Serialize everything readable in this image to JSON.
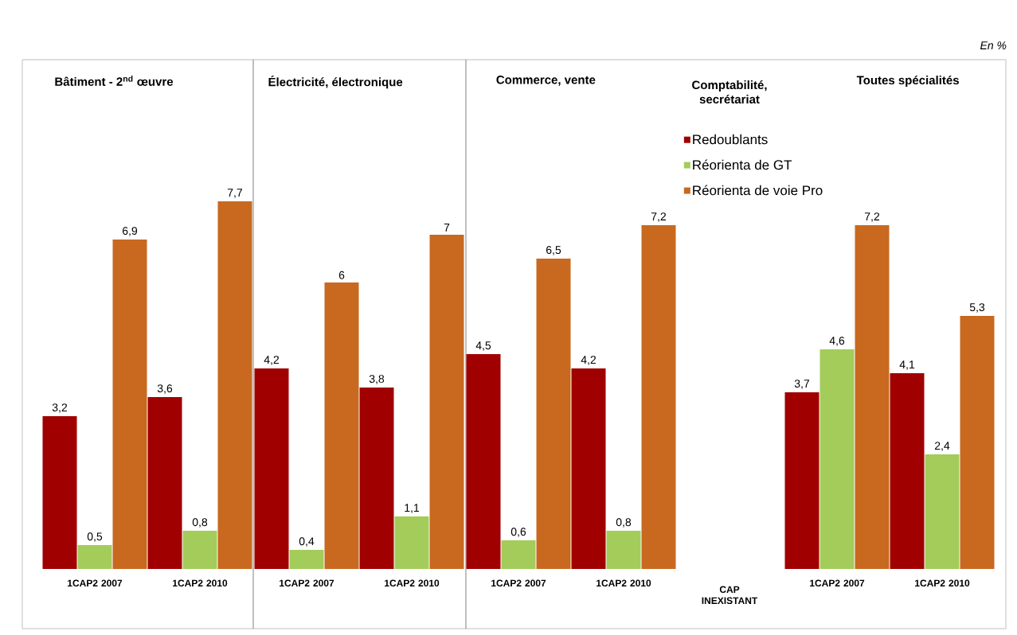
{
  "chart_data": [
    {
      "type": "bar",
      "title": "Bâtiment - 2$^{nd}$ œuvre",
      "categories": [
        "1CAP2 2007",
        "1CAP2 2010"
      ],
      "series": [
        {
          "color": "#a00000",
          "values": [
            3.2,
            3.6
          ],
          "value_labels": [
            "3,2",
            "3,6"
          ]
        },
        {
          "color": "#a3cc5a",
          "values": [
            0.5,
            0.8
          ],
          "value_labels": [
            "0,5",
            "0,8"
          ]
        },
        {
          "color": "#c8691f",
          "values": [
            6.9,
            7.7
          ],
          "value_labels": [
            "6,9",
            "7,7"
          ]
        }
      ]
    },
    {
      "type": "bar",
      "title": "Électricité, électronique",
      "categories": [
        "1CAP2 2007",
        "1CAP2 2010"
      ],
      "series": [
        {
          "color": "#a00000",
          "values": [
            4.2,
            3.8
          ],
          "value_labels": [
            "4,2",
            "3,8"
          ]
        },
        {
          "color": "#a3cc5a",
          "values": [
            0.4,
            1.1
          ],
          "value_labels": [
            "0,4",
            "1,1"
          ]
        },
        {
          "color": "#c8691f",
          "values": [
            6,
            7
          ],
          "value_labels": [
            "6",
            "7"
          ]
        }
      ]
    },
    {
      "type": "bar",
      "title": "Commerce, vente",
      "categories": [
        "1CAP2 2007",
        "1CAP2 2010"
      ],
      "series": [
        {
          "color": "#a00000",
          "values": [
            4.5,
            4.2
          ],
          "value_labels": [
            "4,5",
            "4,2"
          ]
        },
        {
          "color": "#a3cc5a",
          "values": [
            0.6,
            0.8
          ],
          "value_labels": [
            "0,6",
            "0,8"
          ]
        },
        {
          "color": "#c8691f",
          "values": [
            6.5,
            7.2
          ],
          "value_labels": [
            "6,5",
            "7,2"
          ]
        }
      ]
    },
    {
      "type": "other",
      "title": "Comptabilité, secrétariat",
      "annotations": [
        "CAP INEXISTANT"
      ]
    },
    {
      "type": "bar",
      "title": "Toutes spécialités",
      "categories": [
        "1CAP2 2007",
        "1CAP2 2010"
      ],
      "annotations": [
        "En %"
      ],
      "legend": "left",
      "series": [
        {
          "name": "Redoublants",
          "color": "#a00000",
          "values": [
            3.7,
            4.1
          ],
          "value_labels": [
            "3,7",
            "4,1"
          ]
        },
        {
          "name": "Réorienta de GT",
          "color": "#a3cc5a",
          "values": [
            4.6,
            2.4
          ],
          "value_labels": [
            "4,6",
            "2,4"
          ]
        },
        {
          "name": "Réorienta de voie Pro",
          "color": "#c8691f",
          "values": [
            7.2,
            5.3
          ],
          "value_labels": [
            "7,2",
            "5,3"
          ]
        }
      ]
    }
  ]
}
